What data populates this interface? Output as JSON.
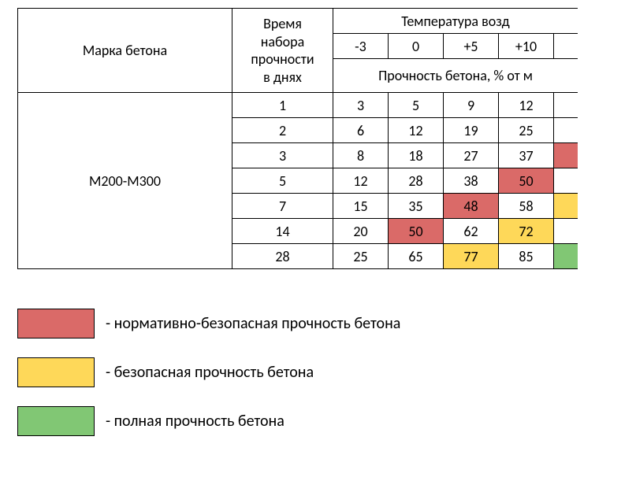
{
  "colors": {
    "red": "#da6a68",
    "yellow": "#fed859",
    "green": "#81c774",
    "white": "#ffffff"
  },
  "header": {
    "brand": "Марка бетона",
    "days": "Время набора прочности в  днях",
    "temp_group": "Температура возд",
    "temps": [
      "-3",
      "0",
      "+5",
      "+10"
    ],
    "sub": "Прочность бетона, % от м"
  },
  "brand_label": "М200-М300",
  "rows": [
    {
      "day": "1",
      "vals": [
        "3",
        "5",
        "9",
        "12"
      ],
      "colors": [
        "white",
        "white",
        "white",
        "white"
      ],
      "tail_color": "white"
    },
    {
      "day": "2",
      "vals": [
        "6",
        "12",
        "19",
        "25"
      ],
      "colors": [
        "white",
        "white",
        "white",
        "white"
      ],
      "tail_color": "white"
    },
    {
      "day": "3",
      "vals": [
        "8",
        "18",
        "27",
        "37"
      ],
      "colors": [
        "white",
        "white",
        "white",
        "white"
      ],
      "tail_color": "red"
    },
    {
      "day": "5",
      "vals": [
        "12",
        "28",
        "38",
        "50"
      ],
      "colors": [
        "white",
        "white",
        "white",
        "red"
      ],
      "tail_color": "white"
    },
    {
      "day": "7",
      "vals": [
        "15",
        "35",
        "48",
        "58"
      ],
      "colors": [
        "white",
        "white",
        "red",
        "white"
      ],
      "tail_color": "yellow"
    },
    {
      "day": "14",
      "vals": [
        "20",
        "50",
        "62",
        "72"
      ],
      "colors": [
        "white",
        "red",
        "white",
        "yellow"
      ],
      "tail_color": "white"
    },
    {
      "day": "28",
      "vals": [
        "25",
        "65",
        "77",
        "85"
      ],
      "colors": [
        "white",
        "white",
        "yellow",
        "white"
      ],
      "tail_color": "green"
    }
  ],
  "legend": [
    {
      "color": "red",
      "text": "- нормативно-безопасная прочность бетона"
    },
    {
      "color": "yellow",
      "text": "- безопасная прочность бетона"
    },
    {
      "color": "green",
      "text": "- полная прочность бетона"
    }
  ]
}
